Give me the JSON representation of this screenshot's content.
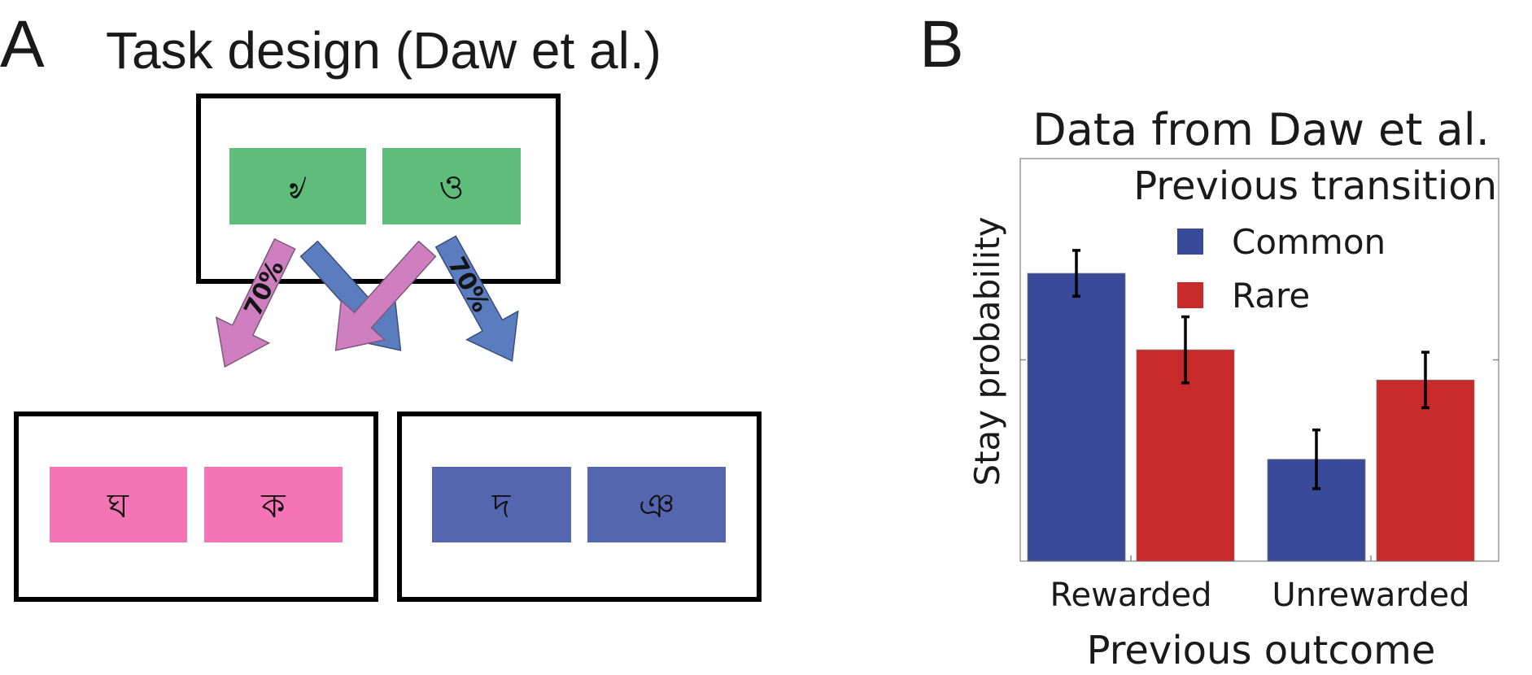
{
  "panel_a": {
    "letter": "A",
    "title": "Task design (Daw et al.)",
    "first_stage": {
      "symbols": [
        "৶",
        "ও"
      ],
      "color": "#5ebd7b"
    },
    "second_stage_left": {
      "symbols": [
        "ঘ",
        "ক"
      ],
      "color": "#f574b6"
    },
    "second_stage_right": {
      "symbols": [
        "দ",
        "ঞ"
      ],
      "color": "#5566b0"
    },
    "arrows": [
      {
        "label": "70%",
        "color": "#cf7fbf"
      },
      {
        "label": "",
        "color": "#5b7dc0"
      },
      {
        "label": "",
        "color": "#cf7fbf"
      },
      {
        "label": "70%",
        "color": "#5b7dc0"
      }
    ]
  },
  "panel_b": {
    "letter": "B"
  },
  "chart_data": {
    "type": "bar",
    "title": "Data from Daw et al.",
    "xlabel": "Previous outcome",
    "ylabel": "Stay probability",
    "categories": [
      "Rewarded",
      "Unrewarded"
    ],
    "legend_title": "Previous transition",
    "legend_position": "top-right",
    "series": [
      {
        "name": "Common",
        "color": "#384a99",
        "values": [
          0.715,
          0.253
        ],
        "errors": [
          0.057,
          0.073
        ]
      },
      {
        "name": "Rare",
        "color": "#c72a28",
        "values": [
          0.525,
          0.45
        ],
        "errors": [
          0.082,
          0.069
        ]
      }
    ],
    "ylim": [
      0,
      1
    ],
    "yticks": [
      0.5
    ],
    "grid": false
  }
}
